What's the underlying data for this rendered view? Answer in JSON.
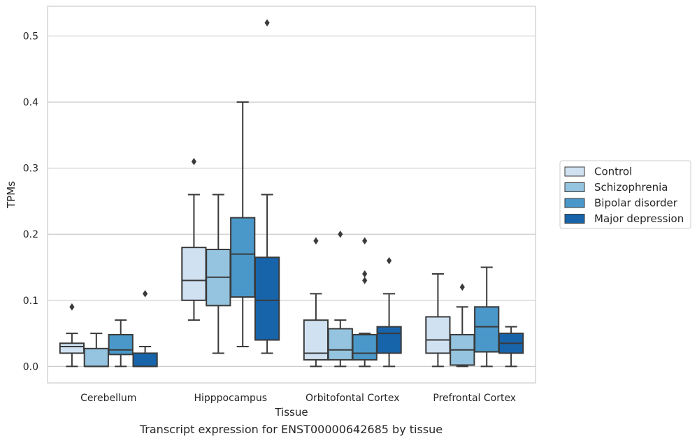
{
  "caption": "Transcript expression for ENST00000642685 by tissue",
  "chart_data": {
    "type": "box",
    "xlabel": "Tissue",
    "ylabel": "TPMs",
    "ylim": [
      -0.025,
      0.545
    ],
    "yticks": [
      0.0,
      0.1,
      0.2,
      0.3,
      0.4,
      0.5
    ],
    "ytick_labels": [
      "0.0",
      "0.1",
      "0.2",
      "0.3",
      "0.4",
      "0.5"
    ],
    "grid": true,
    "legend_position": "right",
    "categories": [
      "Cerebellum",
      "Hipppocampus",
      "Orbitofontal Cortex",
      "Prefrontal Cortex"
    ],
    "series": [
      {
        "name": "Control",
        "color": "#d0e1f2",
        "boxes": [
          {
            "whislo": 0.0,
            "q1": 0.02,
            "med": 0.03,
            "q3": 0.035,
            "whishi": 0.05,
            "fliers": [
              0.09
            ]
          },
          {
            "whislo": 0.07,
            "q1": 0.1,
            "med": 0.13,
            "q3": 0.18,
            "whishi": 0.26,
            "fliers": [
              0.31
            ]
          },
          {
            "whislo": 0.0,
            "q1": 0.01,
            "med": 0.02,
            "q3": 0.07,
            "whishi": 0.11,
            "fliers": [
              0.19
            ]
          },
          {
            "whislo": 0.0,
            "q1": 0.02,
            "med": 0.04,
            "q3": 0.075,
            "whishi": 0.14,
            "fliers": []
          }
        ]
      },
      {
        "name": "Schizophrenia",
        "color": "#94c4df",
        "boxes": [
          {
            "whislo": 0.0,
            "q1": 0.0,
            "med": 0.0,
            "q3": 0.027,
            "whishi": 0.05,
            "fliers": []
          },
          {
            "whislo": 0.02,
            "q1": 0.092,
            "med": 0.135,
            "q3": 0.177,
            "whishi": 0.26,
            "fliers": []
          },
          {
            "whislo": 0.0,
            "q1": 0.01,
            "med": 0.025,
            "q3": 0.057,
            "whishi": 0.07,
            "fliers": [
              0.2
            ]
          },
          {
            "whislo": 0.0,
            "q1": 0.002,
            "med": 0.025,
            "q3": 0.048,
            "whishi": 0.09,
            "fliers": [
              0.12
            ]
          }
        ]
      },
      {
        "name": "Bipolar disorder",
        "color": "#4a98c9",
        "boxes": [
          {
            "whislo": 0.0,
            "q1": 0.018,
            "med": 0.025,
            "q3": 0.048,
            "whishi": 0.07,
            "fliers": []
          },
          {
            "whislo": 0.03,
            "q1": 0.105,
            "med": 0.17,
            "q3": 0.225,
            "whishi": 0.4,
            "fliers": []
          },
          {
            "whislo": 0.0,
            "q1": 0.01,
            "med": 0.02,
            "q3": 0.048,
            "whishi": 0.05,
            "fliers": [
              0.13,
              0.14,
              0.19
            ]
          },
          {
            "whislo": 0.0,
            "q1": 0.022,
            "med": 0.06,
            "q3": 0.09,
            "whishi": 0.15,
            "fliers": []
          }
        ]
      },
      {
        "name": "Major depression",
        "color": "#1764ab",
        "boxes": [
          {
            "whislo": 0.0,
            "q1": 0.0,
            "med": 0.0,
            "q3": 0.02,
            "whishi": 0.03,
            "fliers": [
              0.11
            ]
          },
          {
            "whislo": 0.02,
            "q1": 0.04,
            "med": 0.1,
            "q3": 0.165,
            "whishi": 0.26,
            "fliers": [
              0.52
            ]
          },
          {
            "whislo": 0.0,
            "q1": 0.02,
            "med": 0.05,
            "q3": 0.06,
            "whishi": 0.11,
            "fliers": [
              0.16
            ]
          },
          {
            "whislo": 0.0,
            "q1": 0.02,
            "med": 0.035,
            "q3": 0.05,
            "whishi": 0.06,
            "fliers": []
          }
        ]
      }
    ]
  }
}
